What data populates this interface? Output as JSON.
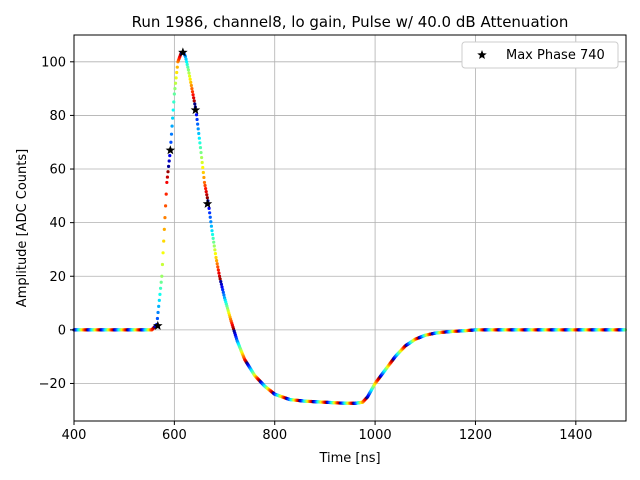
{
  "chart_data": {
    "type": "scatter",
    "title": "Run 1986, channel8, lo gain, Pulse w/ 40.0 dB Attenuation",
    "xlabel": "Time [ns]",
    "ylabel": "Amplitude [ADC Counts]",
    "xlim": [
      400,
      1500
    ],
    "ylim": [
      -34,
      110
    ],
    "xticks": [
      400,
      600,
      800,
      1000,
      1200,
      1400
    ],
    "yticks": [
      -20,
      0,
      20,
      40,
      60,
      80,
      100
    ],
    "xtick_labels": [
      "400",
      "600",
      "800",
      "1000",
      "1200",
      "1400"
    ],
    "ytick_labels": [
      "−20",
      "0",
      "20",
      "40",
      "60",
      "80",
      "100"
    ],
    "grid": true,
    "legend_position": "top-right",
    "colormap": "jet",
    "series": [
      {
        "name": "",
        "style": "dots colored by jet colormap",
        "x": [
          400,
          500,
          555,
          565,
          575,
          585,
          592,
          600,
          607,
          613,
          618,
          622,
          628,
          635,
          643,
          652,
          660,
          668,
          675,
          683,
          690,
          700,
          712,
          725,
          740,
          760,
          780,
          800,
          830,
          860,
          900,
          930,
          960,
          975,
          985,
          1000,
          1020,
          1040,
          1060,
          1080,
          1100,
          1120,
          1140,
          1160,
          1180,
          1200,
          1250,
          1300,
          1400,
          1500
        ],
        "y": [
          0,
          0,
          0,
          2,
          20,
          55,
          67,
          88,
          100,
          103,
          103.5,
          102,
          97,
          90,
          82,
          68,
          55,
          47,
          37,
          27,
          20,
          12,
          4,
          -4,
          -11,
          -17,
          -21,
          -24,
          -26,
          -26.6,
          -27,
          -27.3,
          -27.4,
          -27,
          -25,
          -20,
          -15,
          -10,
          -6,
          -3.5,
          -2,
          -1.2,
          -0.8,
          -0.5,
          -0.3,
          0,
          0,
          0,
          0,
          0
        ]
      },
      {
        "name": "Max Phase 740",
        "style": "black star markers",
        "x": [
          567,
          592,
          617,
          642,
          666
        ],
        "y": [
          1.5,
          67,
          103.5,
          82,
          47
        ]
      }
    ]
  }
}
